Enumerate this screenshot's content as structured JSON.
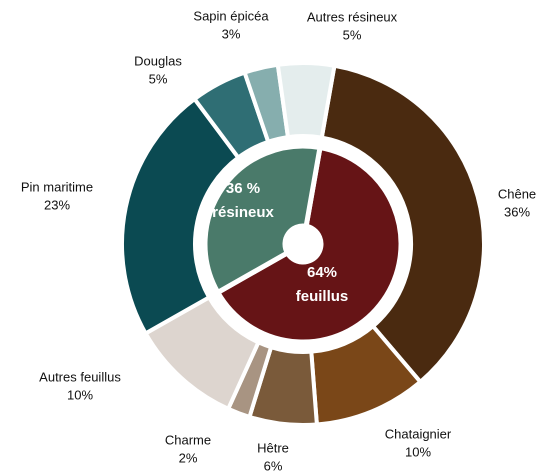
{
  "chart_data": {
    "type": "nested_donut",
    "outer": {
      "categories": [
        "Chêne",
        "Chataignier",
        "Hêtre",
        "Charme",
        "Autres feuillus",
        "Pin maritime",
        "Douglas",
        "Sapin épicéa",
        "Autres résineux"
      ],
      "values": [
        36,
        10,
        6,
        2,
        10,
        23,
        5,
        3,
        5
      ],
      "value_labels": [
        "36%",
        "10%",
        "6%",
        "2%",
        "10%",
        "23%",
        "5%",
        "3%",
        "5%"
      ],
      "colors": [
        "#4a2a10",
        "#7a4718",
        "#7a5a3a",
        "#a89482",
        "#ddd5cf",
        "#0b4a52",
        "#2f6e74",
        "#86aeae",
        "#e4eded"
      ]
    },
    "inner": {
      "categories": [
        "feuillus",
        "résineux"
      ],
      "values": [
        64,
        36
      ],
      "value_labels": [
        "64%",
        "36 %"
      ],
      "colors": [
        "#661416",
        "#4a7a6a"
      ]
    }
  }
}
